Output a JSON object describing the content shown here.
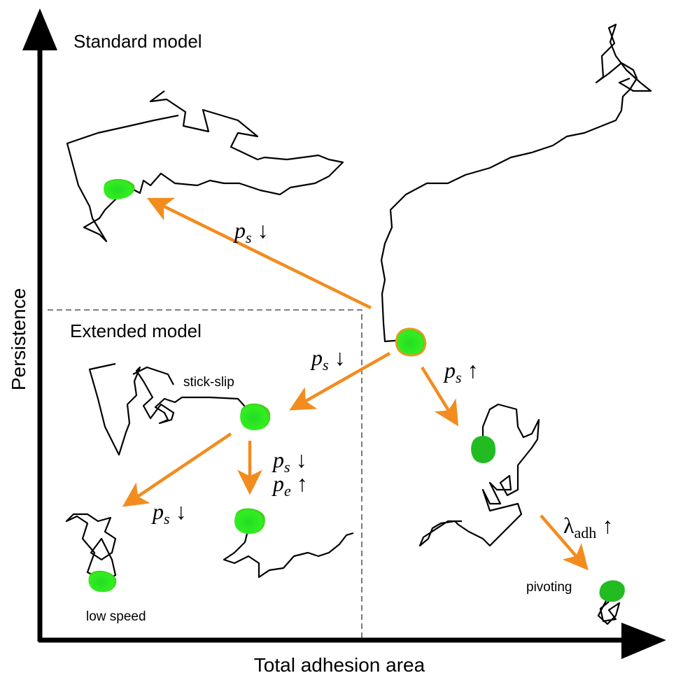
{
  "title": "Standard model",
  "inset_title": "Extended model",
  "axes": {
    "y_label": "Persistence",
    "x_label": "Total adhesion area"
  },
  "annotations": [
    "stick-slip",
    "low speed",
    "pivoting"
  ],
  "arrow_labels": [
    {
      "base": "p",
      "sub": "s",
      "dir": "↓"
    },
    {
      "base": "p",
      "sub": "s",
      "dir": "↓"
    },
    {
      "base": "p",
      "sub": "s",
      "dir": "↑"
    },
    {
      "base": "p",
      "sub": "s",
      "dir": "↓"
    },
    {
      "base": "p",
      "sub": "e",
      "dir": "↑"
    },
    {
      "base": "p",
      "sub": "s",
      "dir": "↓"
    },
    {
      "base": "λ",
      "sub": "adh",
      "dir": "↑"
    }
  ]
}
